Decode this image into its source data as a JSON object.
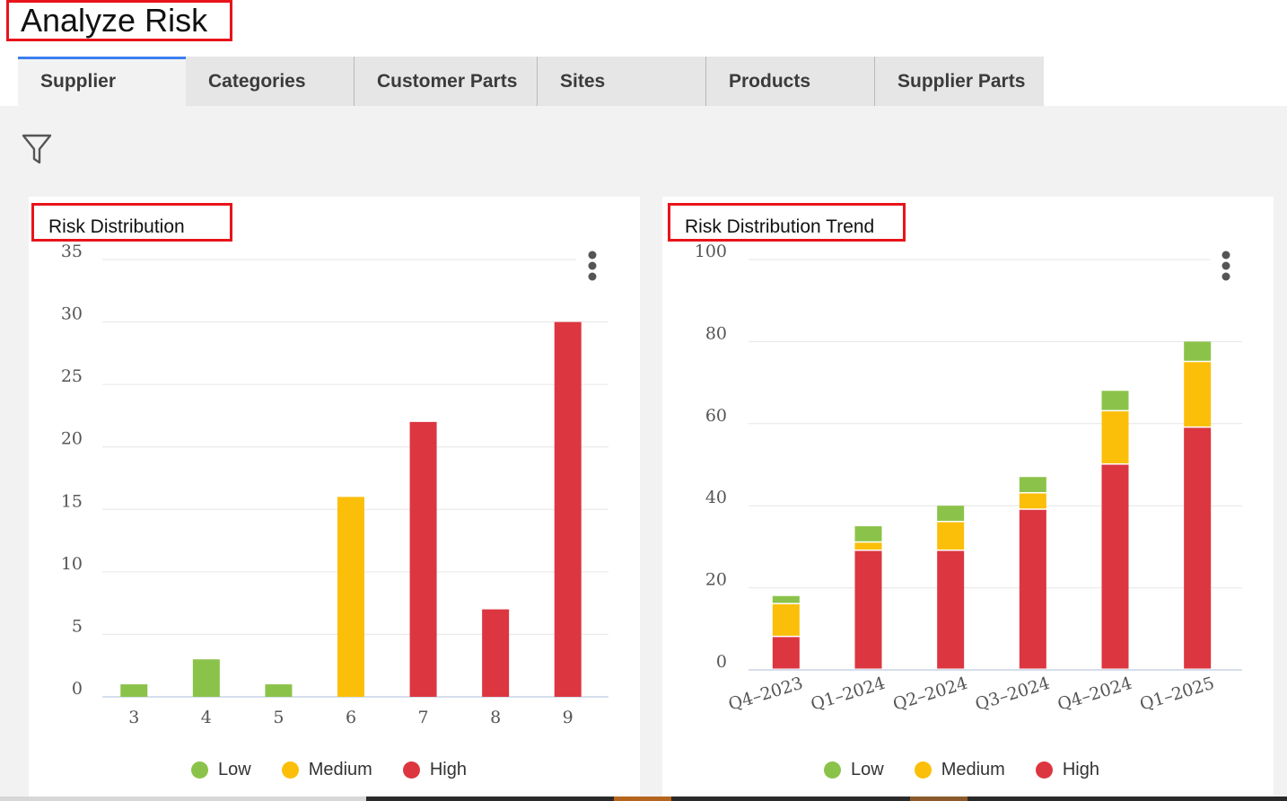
{
  "page": {
    "title": "Analyze Risk"
  },
  "tabs": [
    {
      "label": "Supplier",
      "active": true
    },
    {
      "label": "Categories",
      "active": false
    },
    {
      "label": "Customer Parts",
      "active": false
    },
    {
      "label": "Sites",
      "active": false
    },
    {
      "label": "Products",
      "active": false
    },
    {
      "label": "Supplier Parts",
      "active": false
    }
  ],
  "toolbar": {
    "filter_icon": "filter-icon"
  },
  "colors": {
    "low": "#8bc34a",
    "medium": "#fbbf0a",
    "high": "#dc3640",
    "active_tab": "#3d7ff0",
    "highlight": "#e8141b"
  },
  "legend": [
    {
      "label": "Low",
      "color": "#8bc34a"
    },
    {
      "label": "Medium",
      "color": "#fbbf0a"
    },
    {
      "label": "High",
      "color": "#dc3640"
    }
  ],
  "chart_data": [
    {
      "type": "bar",
      "title": "Risk Distribution",
      "categories": [
        "3",
        "4",
        "5",
        "6",
        "7",
        "8",
        "9"
      ],
      "values": [
        1,
        3,
        1,
        16,
        22,
        7,
        30
      ],
      "levels": [
        "Low",
        "Low",
        "Low",
        "Medium",
        "High",
        "High",
        "High"
      ],
      "ylim": [
        0,
        35
      ],
      "yticks": [
        0,
        5,
        10,
        15,
        20,
        25,
        30,
        35
      ],
      "xlabel": "",
      "ylabel": "",
      "grid": true,
      "legend_position": "bottom"
    },
    {
      "type": "bar",
      "stacked": true,
      "title": "Risk Distribution Trend",
      "categories": [
        "Q4-2023",
        "Q1-2024",
        "Q2-2024",
        "Q3-2024",
        "Q4-2024",
        "Q1-2025"
      ],
      "series": [
        {
          "name": "High",
          "values": [
            8,
            29,
            29,
            39,
            50,
            59
          ]
        },
        {
          "name": "Medium",
          "values": [
            8,
            2,
            7,
            4,
            13,
            16
          ]
        },
        {
          "name": "Low",
          "values": [
            2,
            4,
            4,
            4,
            5,
            5
          ]
        }
      ],
      "ylim": [
        0,
        100
      ],
      "yticks": [
        0,
        20,
        40,
        60,
        80,
        100
      ],
      "xlabel": "",
      "ylabel": "",
      "grid": true,
      "legend_position": "bottom"
    }
  ]
}
